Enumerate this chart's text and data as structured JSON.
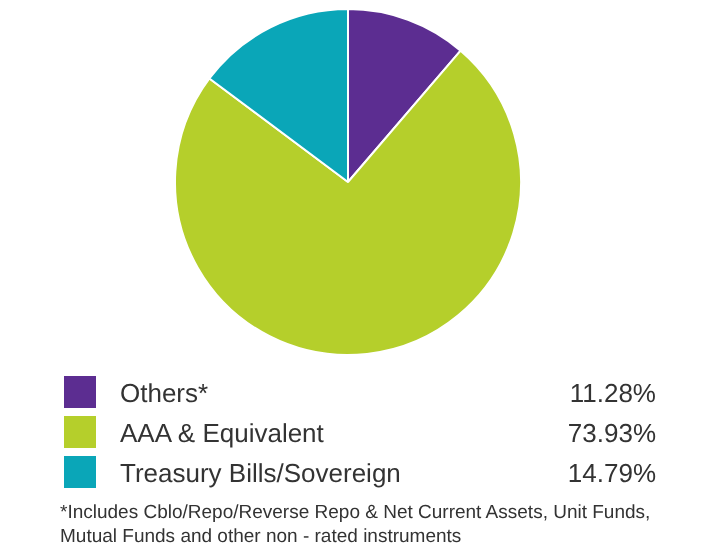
{
  "chart_data": {
    "type": "pie",
    "categories": [
      "Others*",
      "AAA & Equivalent",
      "Treasury Bills/Sovereign"
    ],
    "values": [
      11.28,
      73.93,
      14.79
    ],
    "colors": [
      "#5c2d91",
      "#b5cf2b",
      "#0aa6b8"
    ],
    "value_labels": [
      "11.28%",
      "73.93%",
      "14.79%"
    ],
    "legend": "bottom",
    "annotations": [
      "*Includes Cblo/Repo/Reverse Repo & Net Current Assets, Unit Funds, Mutual Funds and other non - rated instruments"
    ]
  }
}
